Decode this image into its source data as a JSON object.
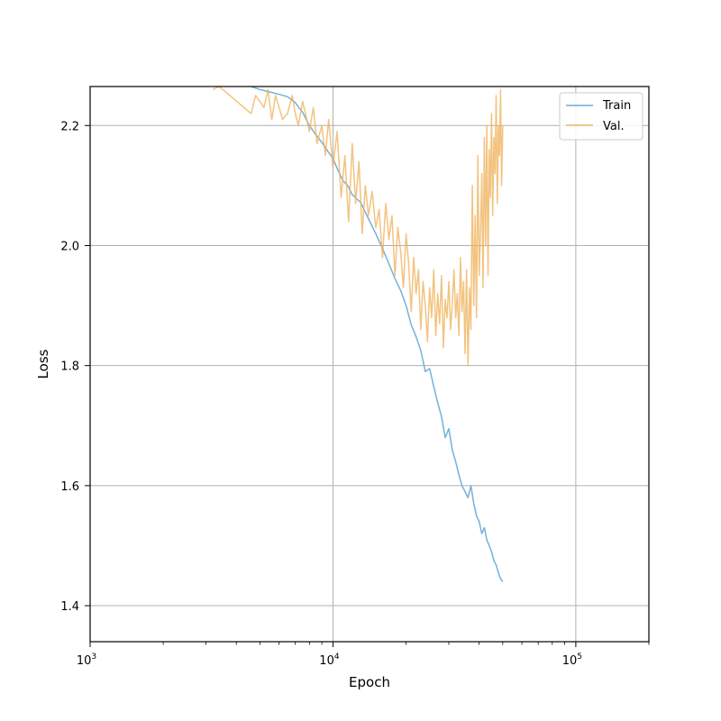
{
  "chart_data": {
    "type": "line",
    "title": "",
    "xlabel": "Epoch",
    "ylabel": "Loss",
    "xscale": "log",
    "xlim": [
      1000,
      200000
    ],
    "ylim": [
      1.34,
      2.265
    ],
    "grid": true,
    "legend_position": "top-right",
    "x_ticks": [
      {
        "value": 1000,
        "base": "10",
        "exp": "3"
      },
      {
        "value": 10000,
        "base": "10",
        "exp": "4"
      },
      {
        "value": 100000,
        "base": "10",
        "exp": "5"
      }
    ],
    "y_ticks": [
      {
        "value": 1.4,
        "label": "1.4"
      },
      {
        "value": 1.6,
        "label": "1.6"
      },
      {
        "value": 1.8,
        "label": "1.8"
      },
      {
        "value": 2.0,
        "label": "2.0"
      },
      {
        "value": 2.2,
        "label": "2.2"
      }
    ],
    "series": [
      {
        "name": "Train",
        "color": "#6baed6",
        "x": [
          4600,
          5000,
          5500,
          6000,
          6500,
          7000,
          7500,
          8000,
          8500,
          9000,
          9500,
          10000,
          10500,
          11000,
          11500,
          12000,
          12500,
          13000,
          13500,
          14000,
          15000,
          16000,
          17000,
          18000,
          19000,
          20000,
          21000,
          22000,
          23000,
          24000,
          25000,
          26000,
          27000,
          28000,
          29000,
          30000,
          31000,
          32000,
          33000,
          34000,
          35000,
          36000,
          37000,
          38000,
          39000,
          40000,
          41000,
          42000,
          43000,
          44000,
          45000,
          46000,
          47000,
          48000,
          49000,
          50000
        ],
        "y": [
          2.265,
          2.26,
          2.256,
          2.252,
          2.248,
          2.238,
          2.222,
          2.2,
          2.185,
          2.172,
          2.158,
          2.145,
          2.125,
          2.108,
          2.1,
          2.085,
          2.078,
          2.072,
          2.058,
          2.045,
          2.02,
          1.995,
          1.97,
          1.945,
          1.925,
          1.9,
          1.868,
          1.848,
          1.825,
          1.79,
          1.795,
          1.765,
          1.738,
          1.715,
          1.68,
          1.695,
          1.66,
          1.64,
          1.618,
          1.6,
          1.59,
          1.58,
          1.6,
          1.57,
          1.55,
          1.54,
          1.52,
          1.53,
          1.51,
          1.5,
          1.49,
          1.475,
          1.468,
          1.455,
          1.445,
          1.44
        ]
      },
      {
        "name": "Val.",
        "color": "#f0b460",
        "x": [
          3200,
          3400,
          4600,
          4800,
          5000,
          5200,
          5400,
          5600,
          5800,
          6000,
          6200,
          6500,
          6800,
          7000,
          7200,
          7500,
          7800,
          8000,
          8300,
          8600,
          9000,
          9300,
          9600,
          10000,
          10400,
          10800,
          11200,
          11600,
          12000,
          12400,
          12800,
          13200,
          13600,
          14000,
          14500,
          15000,
          15500,
          16000,
          16500,
          17000,
          17500,
          18000,
          18500,
          19000,
          19500,
          20000,
          20500,
          21000,
          21500,
          22000,
          22500,
          23000,
          23500,
          24000,
          24500,
          25000,
          25500,
          26000,
          26500,
          27000,
          27500,
          28000,
          28500,
          29000,
          29500,
          30000,
          30500,
          31000,
          31500,
          32000,
          32500,
          33000,
          33500,
          34000,
          34500,
          35000,
          35500,
          36000,
          36500,
          37000,
          37500,
          38000,
          38500,
          39000,
          39500,
          40000,
          40500,
          41000,
          41500,
          42000,
          42500,
          43000,
          43500,
          44000,
          44500,
          45000,
          45500,
          46000,
          46500,
          47000,
          47500,
          48000,
          48500,
          49000,
          49500,
          50000
        ],
        "y": [
          2.26,
          2.265,
          2.22,
          2.25,
          2.24,
          2.23,
          2.26,
          2.21,
          2.25,
          2.23,
          2.21,
          2.22,
          2.25,
          2.22,
          2.2,
          2.24,
          2.21,
          2.19,
          2.23,
          2.17,
          2.2,
          2.15,
          2.21,
          2.13,
          2.19,
          2.08,
          2.15,
          2.04,
          2.17,
          2.07,
          2.14,
          2.02,
          2.1,
          2.05,
          2.09,
          2.03,
          2.06,
          1.98,
          2.07,
          2.01,
          2.05,
          1.95,
          2.03,
          1.99,
          1.93,
          2.02,
          1.97,
          1.89,
          1.98,
          1.92,
          1.96,
          1.86,
          1.94,
          1.9,
          1.84,
          1.93,
          1.88,
          1.96,
          1.85,
          1.92,
          1.87,
          1.95,
          1.83,
          1.91,
          1.88,
          1.94,
          1.86,
          1.9,
          1.96,
          1.88,
          1.92,
          1.85,
          1.98,
          1.89,
          1.94,
          1.82,
          1.96,
          1.8,
          1.93,
          1.86,
          2.1,
          1.9,
          2.05,
          1.88,
          2.15,
          1.95,
          2.02,
          2.12,
          1.93,
          2.18,
          2.0,
          2.2,
          1.95,
          2.16,
          2.08,
          2.22,
          2.05,
          2.18,
          2.12,
          2.25,
          2.07,
          2.2,
          2.15,
          2.26,
          2.1,
          2.2
        ]
      }
    ]
  }
}
